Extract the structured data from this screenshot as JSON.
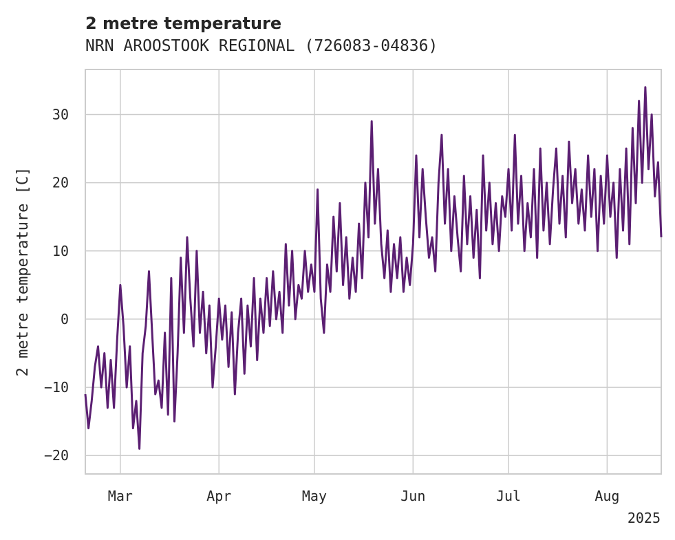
{
  "chart_data": {
    "type": "line",
    "title": "2 metre temperature",
    "subtitle": "NRN AROOSTOOK REGIONAL (726083-04836)",
    "ylabel": "2 metre temperature [C]",
    "xlabel": "",
    "year_label": "2025",
    "x_range": [
      "2025-02-18",
      "2025-08-18"
    ],
    "ylim": [
      -22.7,
      36.6
    ],
    "grid": true,
    "x_ticks": [
      {
        "date": "2025-03-01",
        "label": "Mar"
      },
      {
        "date": "2025-04-01",
        "label": "Apr"
      },
      {
        "date": "2025-05-01",
        "label": "May"
      },
      {
        "date": "2025-06-01",
        "label": "Jun"
      },
      {
        "date": "2025-07-01",
        "label": "Jul"
      },
      {
        "date": "2025-08-01",
        "label": "Aug"
      }
    ],
    "y_ticks": [
      {
        "value": 30,
        "label": "30"
      },
      {
        "value": 20,
        "label": "20"
      },
      {
        "value": 10,
        "label": "10"
      },
      {
        "value": 0,
        "label": "0"
      },
      {
        "value": -10,
        "label": "−10"
      },
      {
        "value": -20,
        "label": "−20"
      }
    ],
    "series": [
      {
        "color": "#5b1f72",
        "points": [
          [
            "2025-02-18",
            -11
          ],
          [
            "2025-02-19",
            -16
          ],
          [
            "2025-02-20",
            -12
          ],
          [
            "2025-02-21",
            -7
          ],
          [
            "2025-02-22",
            -4
          ],
          [
            "2025-02-23",
            -10
          ],
          [
            "2025-02-24",
            -5
          ],
          [
            "2025-02-25",
            -13
          ],
          [
            "2025-02-26",
            -6
          ],
          [
            "2025-02-27",
            -13
          ],
          [
            "2025-02-28",
            -3
          ],
          [
            "2025-03-01",
            5
          ],
          [
            "2025-03-02",
            -1
          ],
          [
            "2025-03-03",
            -10
          ],
          [
            "2025-03-04",
            -4
          ],
          [
            "2025-03-05",
            -16
          ],
          [
            "2025-03-06",
            -12
          ],
          [
            "2025-03-07",
            -19
          ],
          [
            "2025-03-08",
            -5
          ],
          [
            "2025-03-09",
            -1
          ],
          [
            "2025-03-10",
            7
          ],
          [
            "2025-03-11",
            -2
          ],
          [
            "2025-03-12",
            -11
          ],
          [
            "2025-03-13",
            -9
          ],
          [
            "2025-03-14",
            -13
          ],
          [
            "2025-03-15",
            -2
          ],
          [
            "2025-03-16",
            -14
          ],
          [
            "2025-03-17",
            6
          ],
          [
            "2025-03-18",
            -15
          ],
          [
            "2025-03-19",
            -5
          ],
          [
            "2025-03-20",
            9
          ],
          [
            "2025-03-21",
            -2
          ],
          [
            "2025-03-22",
            12
          ],
          [
            "2025-03-23",
            3
          ],
          [
            "2025-03-24",
            -4
          ],
          [
            "2025-03-25",
            10
          ],
          [
            "2025-03-26",
            -2
          ],
          [
            "2025-03-27",
            4
          ],
          [
            "2025-03-28",
            -5
          ],
          [
            "2025-03-29",
            2
          ],
          [
            "2025-03-30",
            -10
          ],
          [
            "2025-03-31",
            -4
          ],
          [
            "2025-04-01",
            3
          ],
          [
            "2025-04-02",
            -3
          ],
          [
            "2025-04-03",
            2
          ],
          [
            "2025-04-04",
            -7
          ],
          [
            "2025-04-05",
            1
          ],
          [
            "2025-04-06",
            -11
          ],
          [
            "2025-04-07",
            -2
          ],
          [
            "2025-04-08",
            3
          ],
          [
            "2025-04-09",
            -8
          ],
          [
            "2025-04-10",
            2
          ],
          [
            "2025-04-11",
            -4
          ],
          [
            "2025-04-12",
            6
          ],
          [
            "2025-04-13",
            -6
          ],
          [
            "2025-04-14",
            3
          ],
          [
            "2025-04-15",
            -2
          ],
          [
            "2025-04-16",
            6
          ],
          [
            "2025-04-17",
            -1
          ],
          [
            "2025-04-18",
            7
          ],
          [
            "2025-04-19",
            0
          ],
          [
            "2025-04-20",
            4
          ],
          [
            "2025-04-21",
            -2
          ],
          [
            "2025-04-22",
            11
          ],
          [
            "2025-04-23",
            2
          ],
          [
            "2025-04-24",
            10
          ],
          [
            "2025-04-25",
            0
          ],
          [
            "2025-04-26",
            5
          ],
          [
            "2025-04-27",
            3
          ],
          [
            "2025-04-28",
            10
          ],
          [
            "2025-04-29",
            4
          ],
          [
            "2025-04-30",
            8
          ],
          [
            "2025-05-01",
            4
          ],
          [
            "2025-05-02",
            19
          ],
          [
            "2025-05-03",
            3
          ],
          [
            "2025-05-04",
            -2
          ],
          [
            "2025-05-05",
            8
          ],
          [
            "2025-05-06",
            4
          ],
          [
            "2025-05-07",
            15
          ],
          [
            "2025-05-08",
            7
          ],
          [
            "2025-05-09",
            17
          ],
          [
            "2025-05-10",
            5
          ],
          [
            "2025-05-11",
            12
          ],
          [
            "2025-05-12",
            3
          ],
          [
            "2025-05-13",
            9
          ],
          [
            "2025-05-14",
            4
          ],
          [
            "2025-05-15",
            14
          ],
          [
            "2025-05-16",
            6
          ],
          [
            "2025-05-17",
            20
          ],
          [
            "2025-05-18",
            12
          ],
          [
            "2025-05-19",
            29
          ],
          [
            "2025-05-20",
            14
          ],
          [
            "2025-05-21",
            22
          ],
          [
            "2025-05-22",
            11
          ],
          [
            "2025-05-23",
            6
          ],
          [
            "2025-05-24",
            13
          ],
          [
            "2025-05-25",
            4
          ],
          [
            "2025-05-26",
            11
          ],
          [
            "2025-05-27",
            6
          ],
          [
            "2025-05-28",
            12
          ],
          [
            "2025-05-29",
            4
          ],
          [
            "2025-05-30",
            9
          ],
          [
            "2025-05-31",
            5
          ],
          [
            "2025-06-01",
            11
          ],
          [
            "2025-06-02",
            24
          ],
          [
            "2025-06-03",
            12
          ],
          [
            "2025-06-04",
            22
          ],
          [
            "2025-06-05",
            15
          ],
          [
            "2025-06-06",
            9
          ],
          [
            "2025-06-07",
            12
          ],
          [
            "2025-06-08",
            7
          ],
          [
            "2025-06-09",
            20
          ],
          [
            "2025-06-10",
            27
          ],
          [
            "2025-06-11",
            14
          ],
          [
            "2025-06-12",
            22
          ],
          [
            "2025-06-13",
            10
          ],
          [
            "2025-06-14",
            18
          ],
          [
            "2025-06-15",
            12
          ],
          [
            "2025-06-16",
            7
          ],
          [
            "2025-06-17",
            21
          ],
          [
            "2025-06-18",
            11
          ],
          [
            "2025-06-19",
            18
          ],
          [
            "2025-06-20",
            9
          ],
          [
            "2025-06-21",
            16
          ],
          [
            "2025-06-22",
            6
          ],
          [
            "2025-06-23",
            24
          ],
          [
            "2025-06-24",
            13
          ],
          [
            "2025-06-25",
            20
          ],
          [
            "2025-06-26",
            11
          ],
          [
            "2025-06-27",
            17
          ],
          [
            "2025-06-28",
            10
          ],
          [
            "2025-06-29",
            18
          ],
          [
            "2025-06-30",
            15
          ],
          [
            "2025-07-01",
            22
          ],
          [
            "2025-07-02",
            13
          ],
          [
            "2025-07-03",
            27
          ],
          [
            "2025-07-04",
            14
          ],
          [
            "2025-07-05",
            21
          ],
          [
            "2025-07-06",
            10
          ],
          [
            "2025-07-07",
            17
          ],
          [
            "2025-07-08",
            12
          ],
          [
            "2025-07-09",
            22
          ],
          [
            "2025-07-10",
            9
          ],
          [
            "2025-07-11",
            25
          ],
          [
            "2025-07-12",
            13
          ],
          [
            "2025-07-13",
            20
          ],
          [
            "2025-07-14",
            11
          ],
          [
            "2025-07-15",
            19
          ],
          [
            "2025-07-16",
            25
          ],
          [
            "2025-07-17",
            14
          ],
          [
            "2025-07-18",
            21
          ],
          [
            "2025-07-19",
            12
          ],
          [
            "2025-07-20",
            26
          ],
          [
            "2025-07-21",
            17
          ],
          [
            "2025-07-22",
            22
          ],
          [
            "2025-07-23",
            14
          ],
          [
            "2025-07-24",
            19
          ],
          [
            "2025-07-25",
            13
          ],
          [
            "2025-07-26",
            24
          ],
          [
            "2025-07-27",
            15
          ],
          [
            "2025-07-28",
            22
          ],
          [
            "2025-07-29",
            10
          ],
          [
            "2025-07-30",
            21
          ],
          [
            "2025-07-31",
            14
          ],
          [
            "2025-08-01",
            24
          ],
          [
            "2025-08-02",
            15
          ],
          [
            "2025-08-03",
            20
          ],
          [
            "2025-08-04",
            9
          ],
          [
            "2025-08-05",
            22
          ],
          [
            "2025-08-06",
            13
          ],
          [
            "2025-08-07",
            25
          ],
          [
            "2025-08-08",
            11
          ],
          [
            "2025-08-09",
            28
          ],
          [
            "2025-08-10",
            17
          ],
          [
            "2025-08-11",
            32
          ],
          [
            "2025-08-12",
            20
          ],
          [
            "2025-08-13",
            34
          ],
          [
            "2025-08-14",
            22
          ],
          [
            "2025-08-15",
            30
          ],
          [
            "2025-08-16",
            18
          ],
          [
            "2025-08-17",
            23
          ],
          [
            "2025-08-18",
            12
          ]
        ]
      }
    ]
  }
}
